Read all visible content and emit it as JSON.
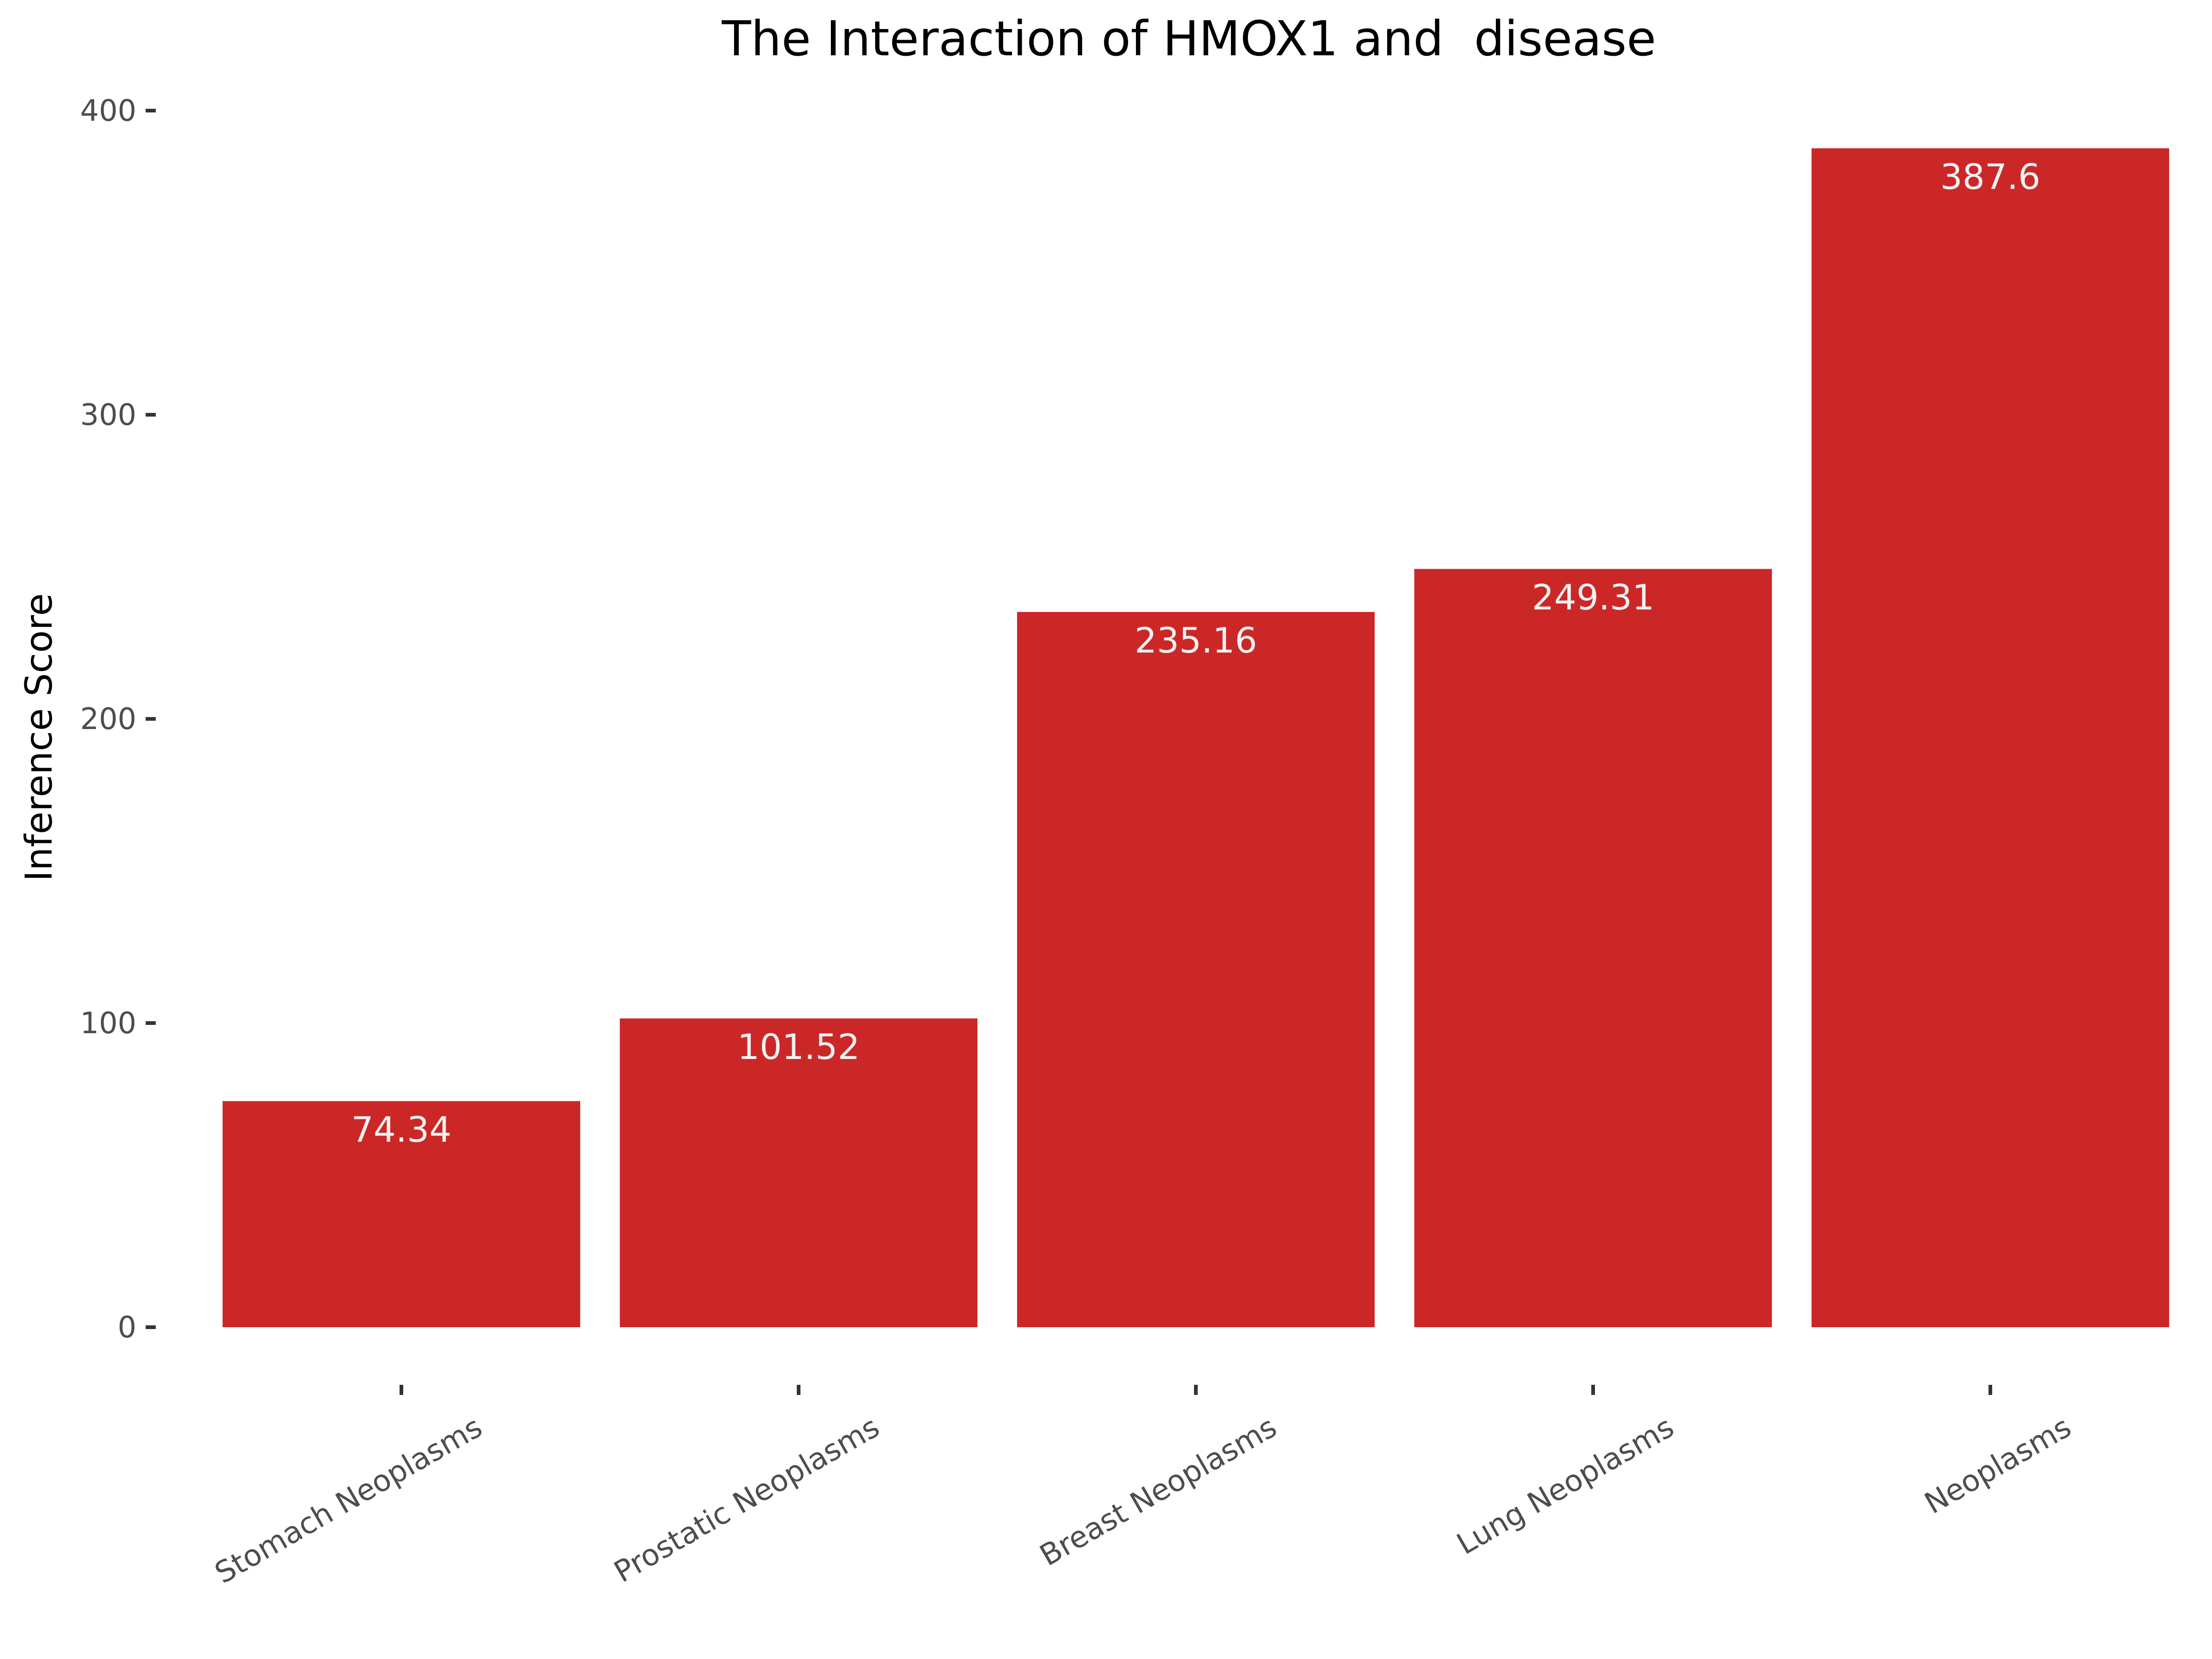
{
  "chart_data": {
    "type": "bar",
    "title": "The Interaction of HMOX1 and  disease",
    "xlabel": "",
    "ylabel": "Inference Score",
    "categories": [
      "Stomach Neoplasms",
      "Prostatic Neoplasms",
      "Breast Neoplasms",
      "Lung Neoplasms",
      "Neoplasms"
    ],
    "values": [
      74.34,
      101.52,
      235.16,
      249.31,
      387.6
    ],
    "value_labels": [
      "74.34",
      "101.52",
      "235.16",
      "249.31",
      "387.6"
    ],
    "ylim": [
      0,
      400
    ],
    "yticks": [
      0,
      100,
      200,
      300,
      400
    ],
    "ytick_labels": [
      "0",
      "100",
      "200",
      "300",
      "400"
    ],
    "grid": false,
    "bar_color": "#cc2727",
    "legend": "none"
  }
}
